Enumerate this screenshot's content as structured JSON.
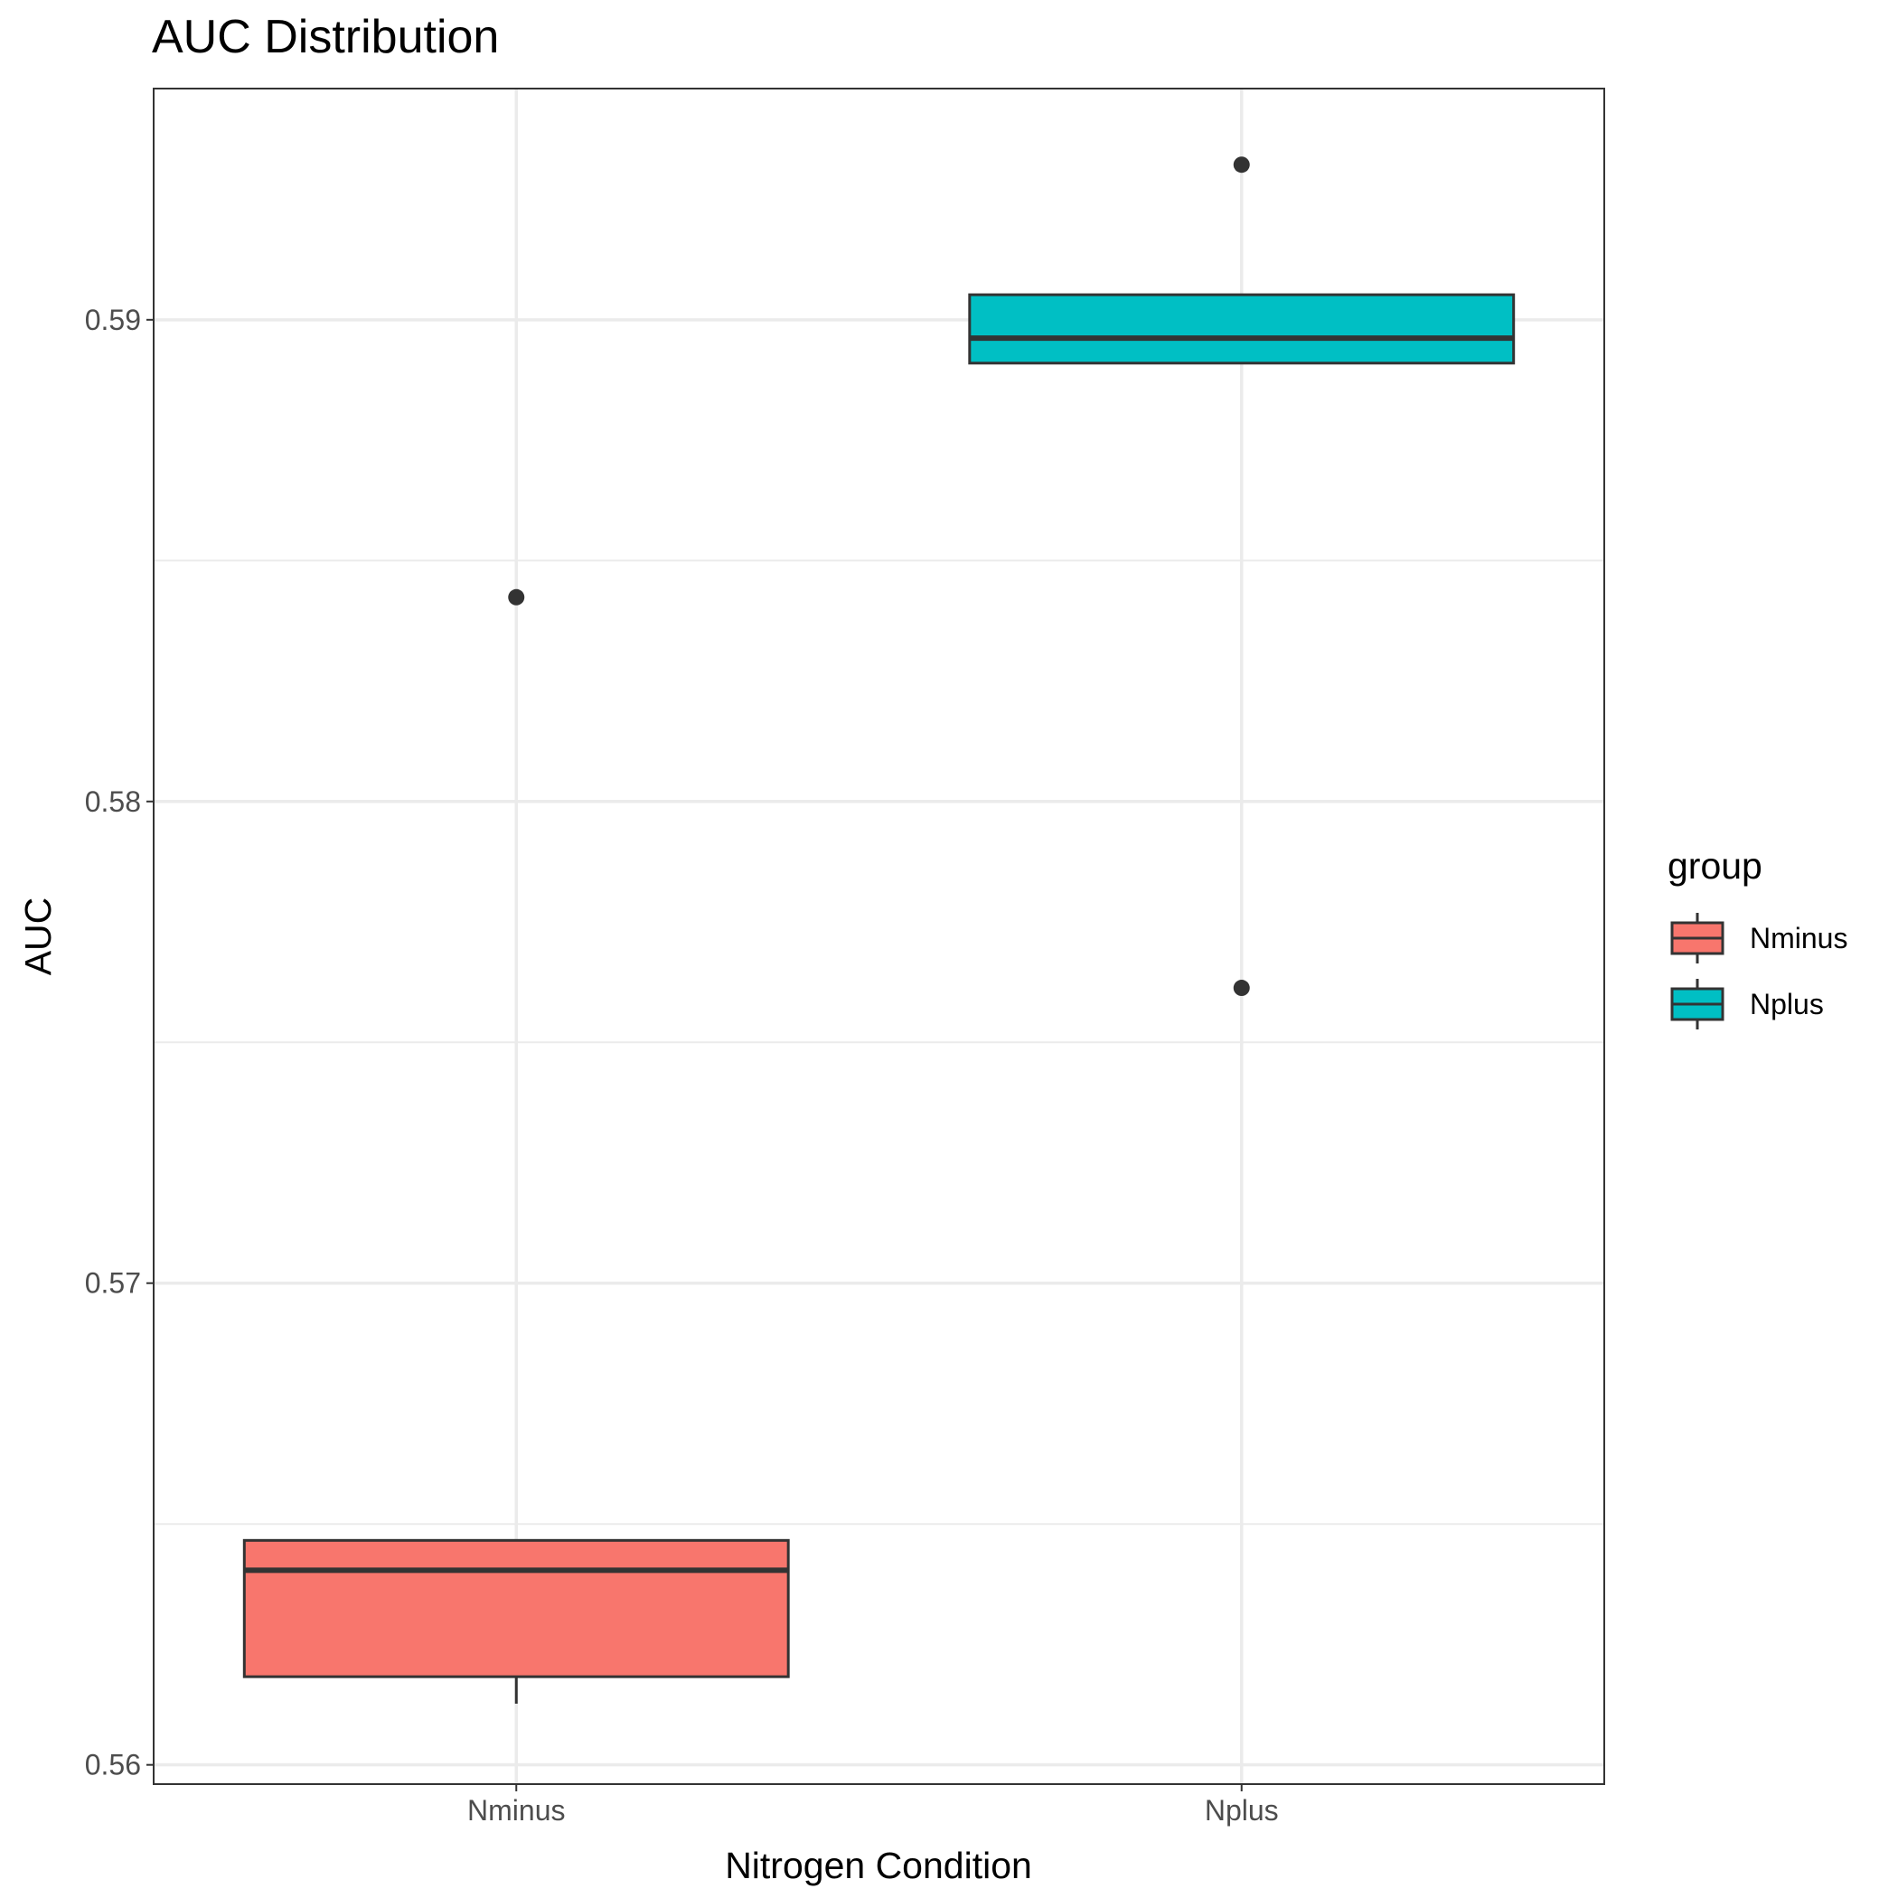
{
  "chart_data": {
    "type": "boxplot",
    "title": "AUC Distribution",
    "xlabel": "Nitrogen Condition",
    "ylabel": "AUC",
    "categories": [
      "Nminus",
      "Nplus"
    ],
    "ylim": [
      0.5596,
      0.5948
    ],
    "yticks": [
      0.56,
      0.57,
      0.58,
      0.59
    ],
    "ytick_labels": [
      "0.56",
      "0.57",
      "0.58",
      "0.59"
    ],
    "grid": true,
    "legend": {
      "title": "group",
      "position": "right",
      "entries": [
        "Nminus",
        "Nplus"
      ]
    },
    "series": [
      {
        "name": "Nminus",
        "category": "Nminus",
        "color": "#F8766D",
        "q1": 0.56183,
        "median": 0.56404,
        "q3": 0.56466,
        "whisker_low": 0.56127,
        "whisker_high": 0.56466,
        "outliers": [
          0.58424
        ]
      },
      {
        "name": "Nplus",
        "category": "Nplus",
        "color": "#00BFC4",
        "q1": 0.5891,
        "median": 0.58962,
        "q3": 0.59052,
        "whisker_low": 0.5891,
        "whisker_high": 0.59052,
        "outliers": [
          0.59322,
          0.57613
        ]
      }
    ]
  }
}
